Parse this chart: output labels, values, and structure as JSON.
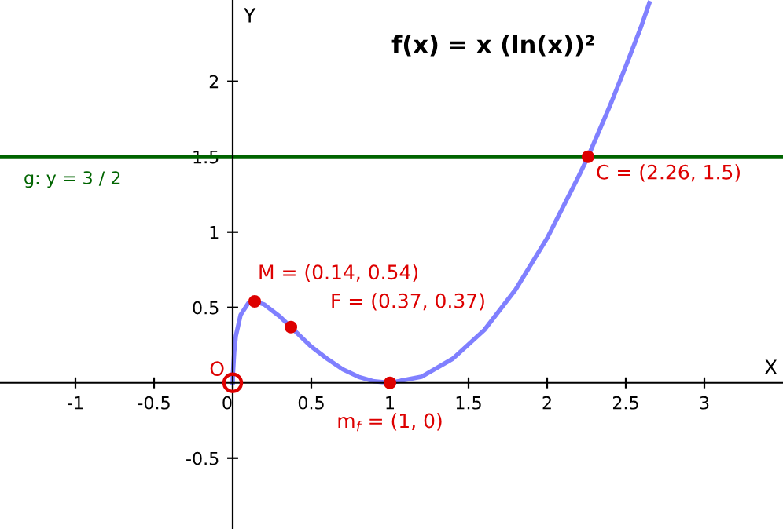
{
  "chart_data": {
    "type": "line",
    "title": "f(x) = x (ln(x))²",
    "xlabel": "X",
    "ylabel": "Y",
    "series": [
      {
        "color": "#8080ff",
        "x": [
          0,
          0.001,
          0.01,
          0.02,
          0.05,
          0.1,
          0.14,
          0.2,
          0.3,
          0.37,
          0.5,
          0.6,
          0.7,
          0.8,
          0.9,
          1,
          1.2,
          1.4,
          1.6,
          1.8,
          2,
          2.2,
          2.26,
          2.4,
          2.5,
          2.6,
          2.65
        ],
        "values": [
          0,
          0.05,
          0.21,
          0.31,
          0.45,
          0.53,
          0.54,
          0.52,
          0.44,
          0.37,
          0.24,
          0.16,
          0.09,
          0.04,
          0.01,
          0,
          0.04,
          0.16,
          0.35,
          0.62,
          0.96,
          1.37,
          1.5,
          1.84,
          2.1,
          2.37,
          2.52
        ]
      }
    ],
    "ref_lines": [
      {
        "axis": "y",
        "value": 1.5,
        "label": "g: y = 3 / 2",
        "color": "#006400"
      }
    ],
    "annotations": [
      {
        "text": "M = (0.14, 0.54)",
        "x": 0.14,
        "y": 0.54
      },
      {
        "text": "F = (0.37, 0.37)",
        "x": 0.37,
        "y": 0.37
      },
      {
        "text": "C = (2.26, 1.5)",
        "x": 2.26,
        "y": 1.5
      },
      {
        "text": "m$_{f}$ = (1, 0)",
        "x": 1,
        "y": 0
      },
      {
        "text": "O",
        "x": 0,
        "y": 0
      }
    ],
    "xlim": [
      -1.48,
      3.5
    ],
    "ylim": [
      -0.97,
      2.54
    ],
    "xticks": [
      -1,
      -0.5,
      0,
      0.5,
      1,
      1.5,
      2,
      2.5,
      3
    ],
    "yticks": [
      -0.5,
      0.5,
      1,
      1.5,
      2
    ],
    "grid": false,
    "legend": false
  }
}
